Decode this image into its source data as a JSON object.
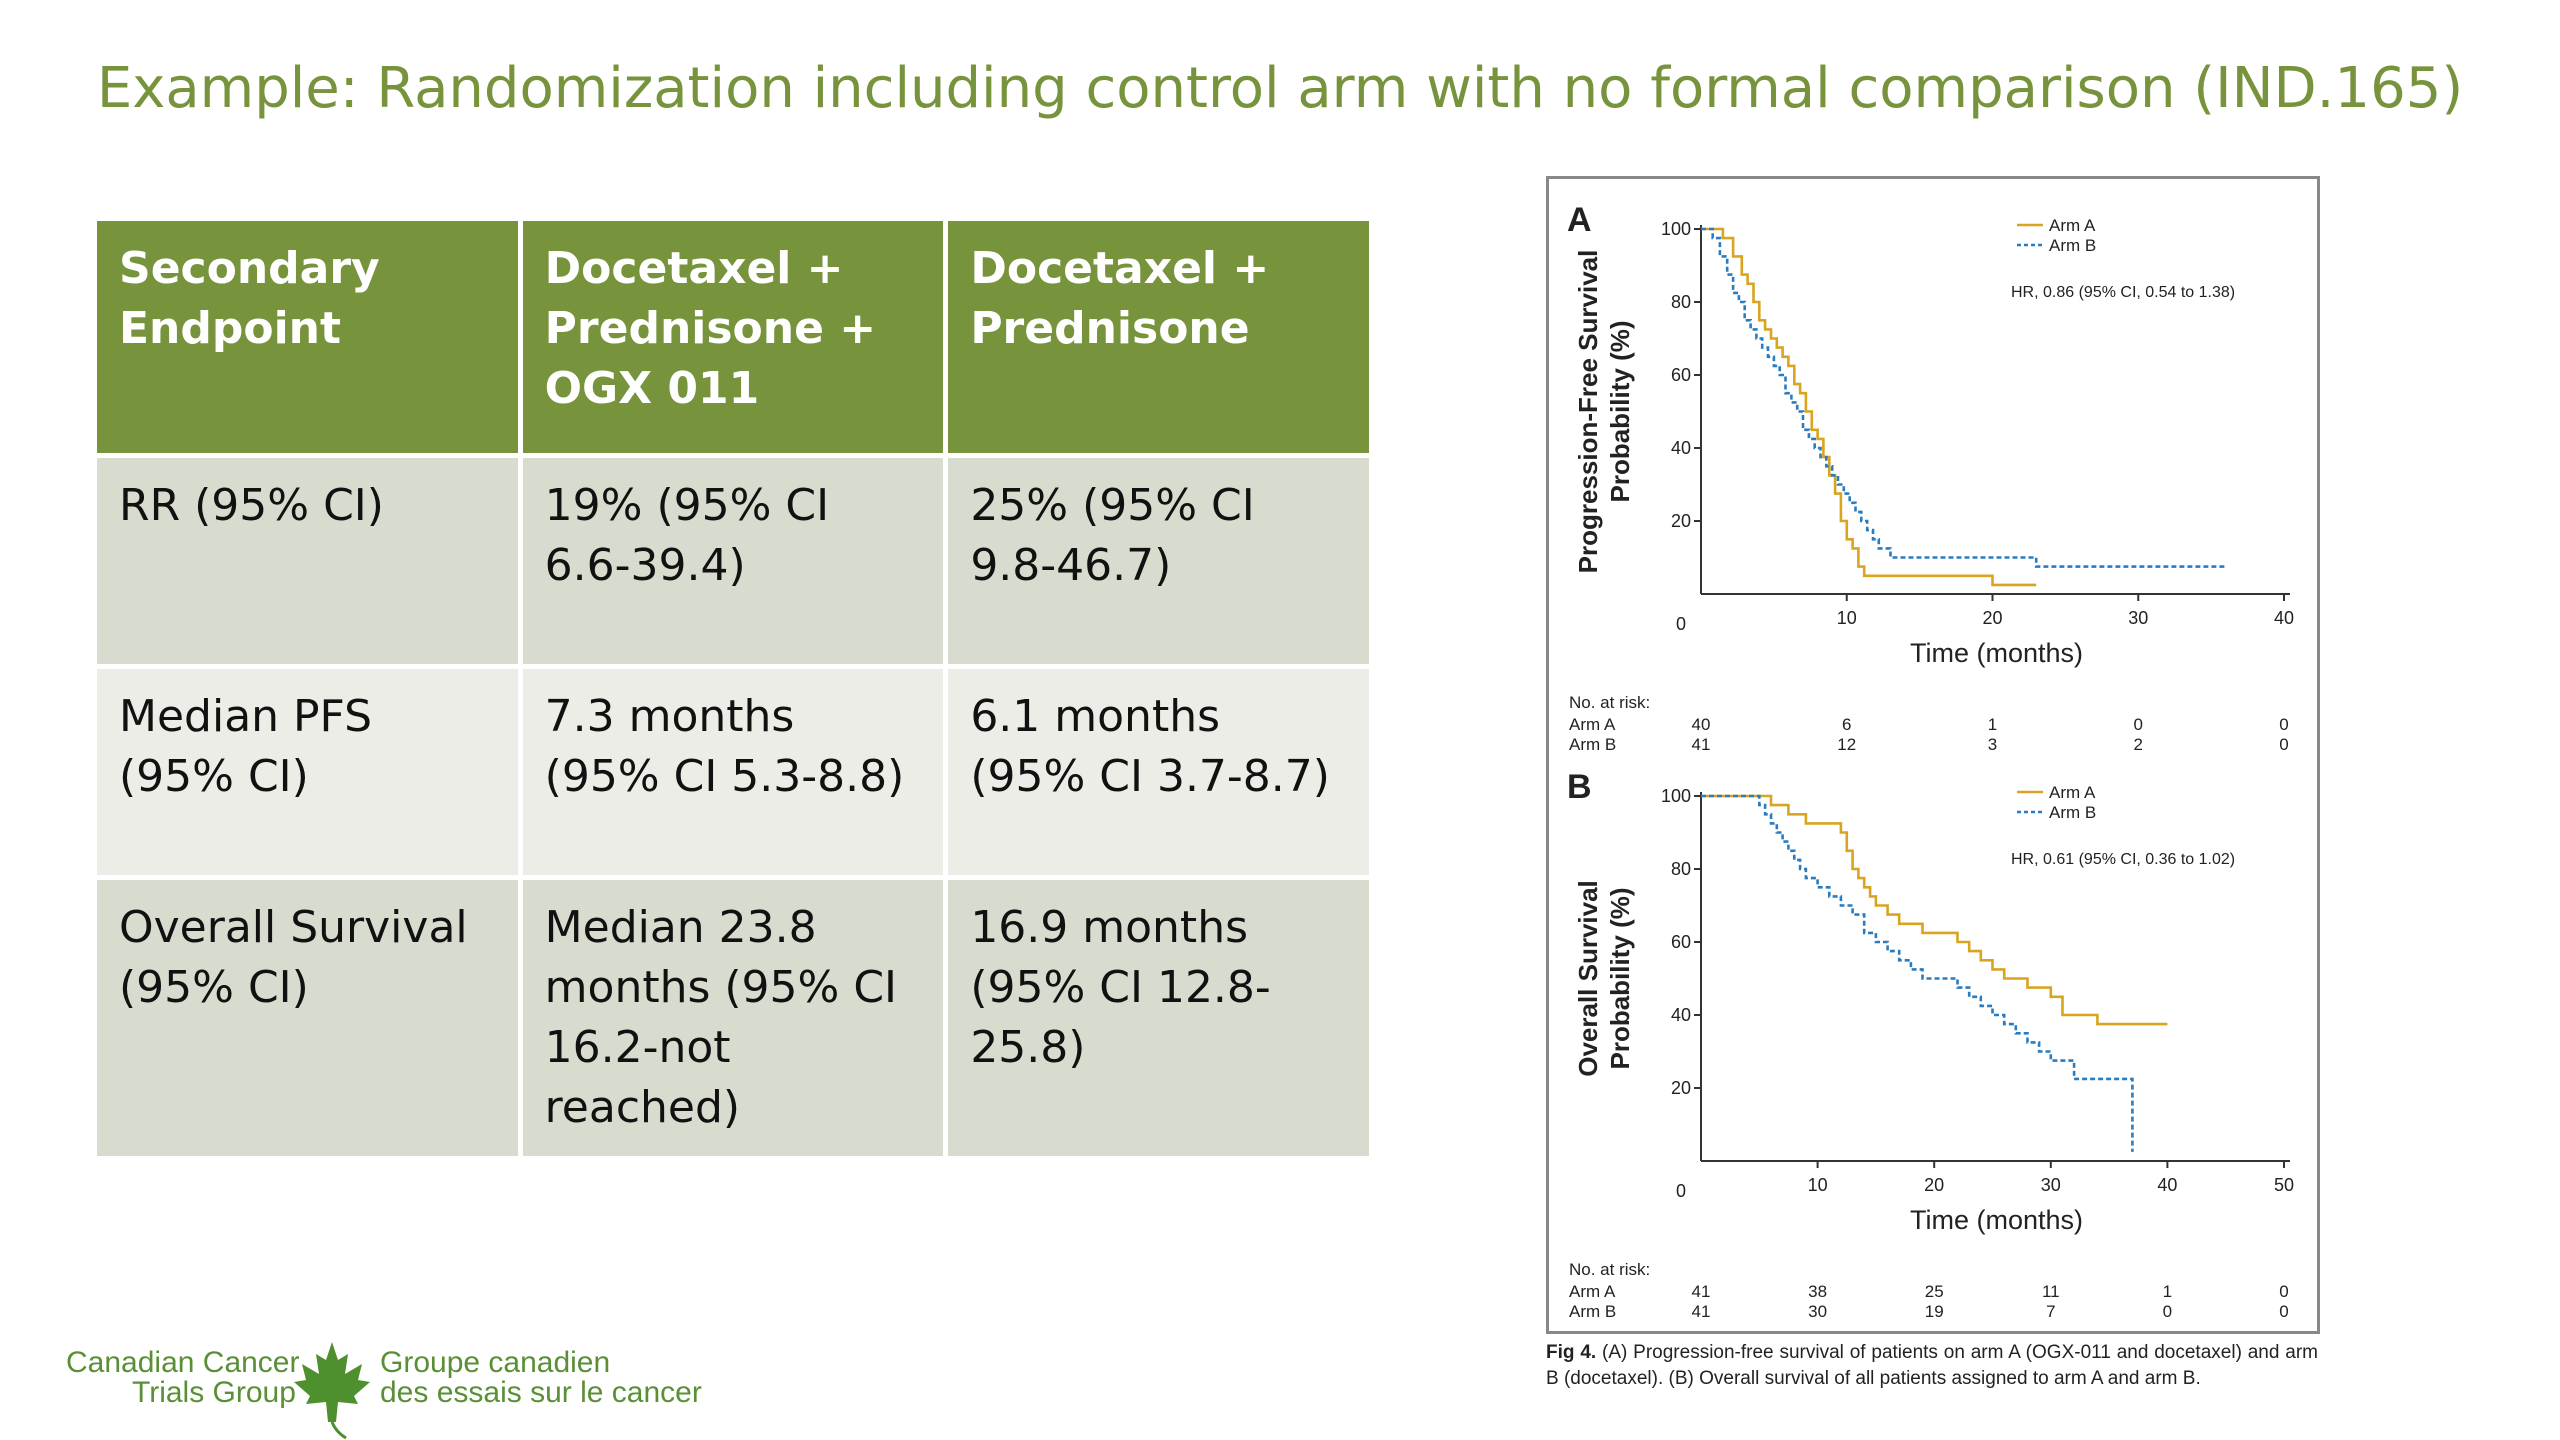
{
  "slide": {
    "title": "Example: Randomization including control arm with no formal comparison (IND.165)"
  },
  "table": {
    "headers": [
      "Secondary Endpoint",
      "Docetaxel + Prednisone + OGX 011",
      "Docetaxel + Prednisone"
    ],
    "rows": [
      [
        "RR (95% CI)",
        "19%  (95% CI 6.6-39.4)",
        "25% (95% CI 9.8-46.7)"
      ],
      [
        "Median PFS (95% CI)",
        "7.3 months (95% CI 5.3-8.8)",
        "6.1 months (95% CI 3.7-8.7)"
      ],
      [
        "Overall Survival (95% CI)",
        "Median 23.8 months (95% CI 16.2-not reached)",
        "16.9 months (95% CI 12.8-25.8)"
      ]
    ]
  },
  "logo": {
    "english_line1": "Canadian Cancer",
    "english_line2": "Trials Group",
    "french_line1": "Groupe canadien",
    "french_line2": "des essais sur le cancer"
  },
  "caption": {
    "lead": "Fig 4.",
    "text": " (A) Progression-free survival of patients on arm A (OGX-011 and docetaxel) and arm B (docetaxel). (B) Overall survival of all patients assigned to arm A and arm B."
  },
  "colors": {
    "title_green": "#77933c",
    "header_green": "#77933c",
    "row_odd": "#d7dccf",
    "row_even": "#ebede6",
    "arm_a": "#d9a520",
    "arm_b": "#2a7cc0"
  },
  "chart_data": [
    {
      "type": "line",
      "panel_label": "A",
      "xlabel": "Time (months)",
      "ylabel": [
        "Progression-Free Survival",
        "Probability (%)"
      ],
      "xlim": [
        0,
        40
      ],
      "ylim": [
        0,
        100
      ],
      "xticks": [
        10,
        20,
        30,
        40
      ],
      "yticks": [
        20,
        40,
        60,
        80,
        100
      ],
      "zero_label": "0",
      "legend": [
        "Arm A",
        "Arm B"
      ],
      "legend_position": "top-right",
      "hr_text": "HR, 0.86 (95% CI, 0.54 to 1.38)",
      "risk_title": "No. at risk:",
      "risk_rows": [
        {
          "label": "Arm A",
          "values": [
            "40",
            "6",
            "1",
            "0",
            "0"
          ]
        },
        {
          "label": "Arm B",
          "values": [
            "41",
            "12",
            "3",
            "2",
            "0"
          ]
        }
      ],
      "risk_times": [
        0,
        10,
        20,
        30,
        40
      ],
      "series": [
        {
          "name": "Arm A",
          "style": "solid",
          "x": [
            0,
            1.5,
            2.2,
            2.8,
            3.2,
            3.6,
            4.0,
            4.4,
            4.8,
            5.2,
            5.6,
            6.0,
            6.4,
            6.8,
            7.2,
            7.6,
            8.0,
            8.4,
            8.8,
            9.2,
            9.6,
            10.0,
            10.4,
            10.8,
            11.2,
            11.6,
            12.2,
            14.0,
            16.0,
            20.0,
            23.0
          ],
          "y": [
            100,
            97.5,
            92.5,
            87.5,
            85,
            80,
            75,
            72.5,
            70,
            67.5,
            65,
            62.5,
            57.5,
            55,
            50,
            45,
            42.5,
            37.5,
            32.5,
            27.5,
            20,
            15,
            12.5,
            7.5,
            5,
            5,
            5,
            5,
            5,
            2.5,
            2.5
          ]
        },
        {
          "name": "Arm B",
          "style": "dashed",
          "x": [
            0,
            0.8,
            1.3,
            1.8,
            2.2,
            2.6,
            3.0,
            3.4,
            3.8,
            4.2,
            4.6,
            5.0,
            5.4,
            5.8,
            6.2,
            6.6,
            7.0,
            7.4,
            7.8,
            8.2,
            8.6,
            9.0,
            9.4,
            9.8,
            10.2,
            10.6,
            11.0,
            11.4,
            11.8,
            12.2,
            13.0,
            15.0,
            19.0,
            23.0,
            26.0,
            30.0,
            36.0
          ],
          "y": [
            100,
            97.5,
            92.5,
            87.5,
            82.5,
            80,
            75,
            72.5,
            70,
            67.5,
            65,
            62.5,
            60,
            55,
            52.5,
            50,
            45,
            42.5,
            40,
            37.5,
            35,
            32.5,
            30,
            27.5,
            25,
            22.5,
            20,
            17.5,
            15,
            12.5,
            10,
            10,
            10,
            7.5,
            7.5,
            7.5,
            7.5
          ]
        }
      ]
    },
    {
      "type": "line",
      "panel_label": "B",
      "xlabel": "Time (months)",
      "ylabel": [
        "Overall Survival",
        "Probability (%)"
      ],
      "xlim": [
        0,
        50
      ],
      "ylim": [
        0,
        100
      ],
      "xticks": [
        10,
        20,
        30,
        40,
        50
      ],
      "yticks": [
        20,
        40,
        60,
        80,
        100
      ],
      "zero_label": "0",
      "legend": [
        "Arm A",
        "Arm B"
      ],
      "legend_position": "top-right",
      "hr_text": "HR, 0.61 (95% CI, 0.36 to 1.02)",
      "risk_title": "No. at risk:",
      "risk_rows": [
        {
          "label": "Arm A",
          "values": [
            "41",
            "38",
            "25",
            "11",
            "1",
            "0"
          ]
        },
        {
          "label": "Arm B",
          "values": [
            "41",
            "30",
            "19",
            "7",
            "0",
            "0"
          ]
        }
      ],
      "risk_times": [
        0,
        10,
        20,
        30,
        40,
        50
      ],
      "series": [
        {
          "name": "Arm A",
          "style": "solid",
          "x": [
            0,
            4.0,
            6.0,
            7.5,
            9.0,
            11.0,
            12.0,
            12.5,
            13.0,
            13.5,
            14.0,
            14.5,
            15.0,
            16.0,
            17.0,
            18.0,
            19.0,
            20.0,
            22.0,
            23.0,
            24.0,
            25.0,
            26.0,
            27.0,
            28.0,
            30.0,
            31.0,
            33.0,
            34.0,
            40.0
          ],
          "y": [
            100,
            100,
            97.5,
            95,
            92.5,
            92.5,
            90,
            85,
            80,
            77.5,
            75,
            72.5,
            70,
            67.5,
            65,
            65,
            62.5,
            62.5,
            60,
            57.5,
            55,
            52.5,
            50,
            50,
            47.5,
            45,
            40,
            40,
            37.5,
            37.5
          ]
        },
        {
          "name": "Arm B",
          "style": "dashed",
          "x": [
            0,
            4.0,
            5.0,
            5.5,
            6.0,
            6.5,
            7.0,
            7.5,
            8.0,
            8.5,
            9.0,
            10.0,
            11.0,
            12.0,
            13.0,
            14.0,
            15.0,
            16.0,
            17.0,
            18.0,
            19.0,
            20.0,
            22.0,
            23.0,
            24.0,
            25.0,
            26.0,
            27.0,
            28.0,
            29.0,
            30.0,
            32.0,
            37.0,
            37.0
          ],
          "y": [
            100,
            100,
            97.5,
            95,
            92.5,
            90,
            87.5,
            85,
            82.5,
            80,
            77.5,
            75,
            72.5,
            70,
            67.5,
            62.5,
            60,
            57.5,
            55,
            52.5,
            50,
            50,
            47.5,
            45,
            42.5,
            40,
            37.5,
            35,
            32.5,
            30,
            27.5,
            22.5,
            22.5,
            2.5
          ]
        }
      ]
    }
  ]
}
